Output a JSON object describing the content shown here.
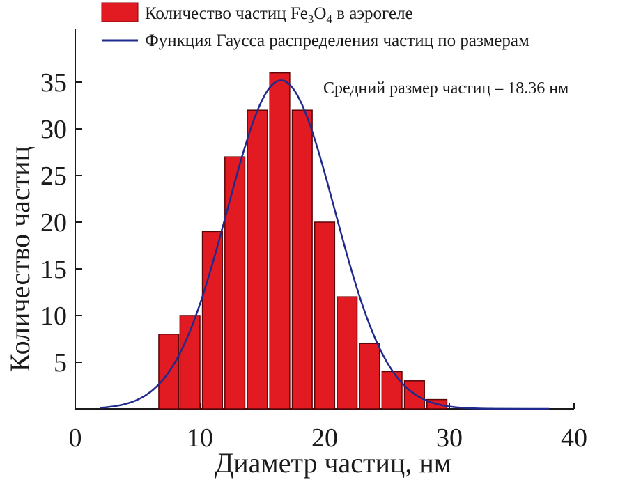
{
  "chart_data": {
    "type": "bar",
    "x": [
      7.5,
      9.2,
      11.0,
      12.8,
      14.6,
      16.4,
      18.2,
      20.0,
      21.8,
      23.6,
      25.4,
      27.2,
      29.0
    ],
    "values": [
      8,
      10,
      19,
      27,
      32,
      36,
      32,
      20,
      12,
      7,
      4,
      3,
      1
    ],
    "bar_width": 1.6,
    "series": [
      {
        "name": "Количество частиц Fe3O4 в аэрогеле",
        "type": "bar",
        "color": "#e21b23"
      },
      {
        "name": "Функция Гаусса распределения частиц по размерам",
        "type": "line",
        "color": "#1f2a8c"
      }
    ],
    "gauss": {
      "amplitude": 35.2,
      "mean": 16.5,
      "sigma": 4.3,
      "x_range": [
        2,
        34
      ]
    },
    "xlabel": "Диаметр частиц, нм",
    "ylabel": "Количество частиц",
    "xlim": [
      0,
      40
    ],
    "ylim": [
      0,
      40
    ],
    "xticks": [
      0,
      10,
      20,
      30,
      40
    ],
    "yticks": [
      5,
      10,
      15,
      20,
      25,
      30,
      35
    ],
    "annotation": "Средний размер частиц – 18.36 нм",
    "grid": false,
    "legend_position": "top-left",
    "legend": {
      "bar_label_main": "Количество частиц Fe",
      "bar_label_sub1": "3",
      "bar_label_mid": "O",
      "bar_label_sub2": "4",
      "bar_label_end": " в аэрогеле",
      "line_label": "Функция Гаусса распределения частиц по размерам"
    }
  }
}
